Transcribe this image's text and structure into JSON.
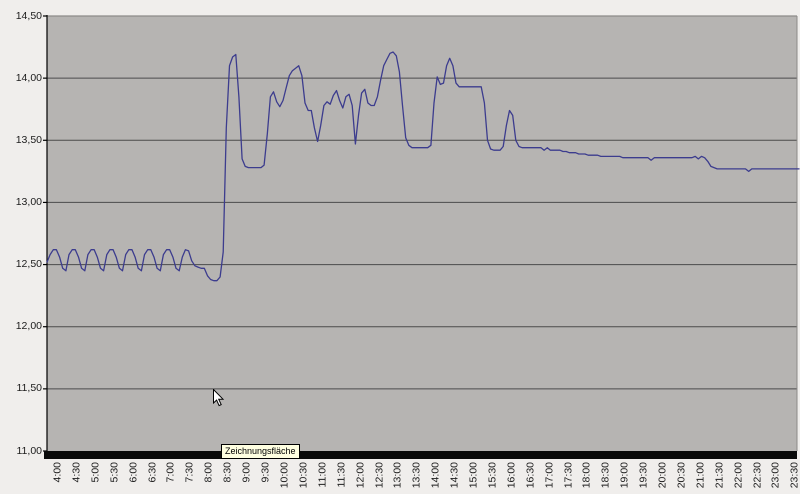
{
  "window": {
    "background": "#f0eeec",
    "plot_background": "#b6b4b2"
  },
  "tooltip": {
    "text": "Zeichnungsfläche"
  },
  "colors": {
    "series_line": "#3c3c8e",
    "gridline": "#4b4b4b",
    "axis": "#000000",
    "axis_band": "#0a0a0a",
    "plot_border": "#8c8a88",
    "tooltip_bg": "#ffffe1",
    "label_text": "#1c1c1c"
  },
  "chart_data": {
    "type": "line",
    "title": "",
    "xlabel": "",
    "ylabel": "",
    "ylim": [
      11.0,
      14.5
    ],
    "y_gridline_step": 0.5,
    "decimal_style": "comma",
    "legend": "none",
    "grid": "horizontal",
    "y_tick_labels": [
      "14,50",
      "14,00",
      "13,50",
      "13,00",
      "12,50",
      "12,00",
      "11,50",
      "11,00"
    ],
    "x_tick_labels": [
      "4:00",
      "4:30",
      "5:00",
      "5:30",
      "6:00",
      "6:30",
      "7:00",
      "7:30",
      "8:00",
      "8:30",
      "9:00",
      "9:30",
      "10:00",
      "10:30",
      "11:00",
      "11:30",
      "12:00",
      "12:30",
      "13:00",
      "13:30",
      "14:00",
      "14:30",
      "15:00",
      "15:30",
      "16:00",
      "16:30",
      "17:00",
      "17:30",
      "18:00",
      "18:30",
      "19:00",
      "19:30",
      "20:00",
      "20:30",
      "21:00",
      "21:30",
      "22:00",
      "22:30",
      "23:00",
      "23:30"
    ],
    "x_start": "04:00",
    "x_step_minutes": 5,
    "values": [
      12.52,
      12.58,
      12.62,
      12.62,
      12.56,
      12.47,
      12.45,
      12.58,
      12.62,
      12.62,
      12.56,
      12.47,
      12.45,
      12.58,
      12.62,
      12.62,
      12.56,
      12.47,
      12.45,
      12.58,
      12.62,
      12.62,
      12.56,
      12.47,
      12.45,
      12.58,
      12.62,
      12.62,
      12.56,
      12.47,
      12.45,
      12.58,
      12.62,
      12.62,
      12.56,
      12.47,
      12.45,
      12.58,
      12.62,
      12.62,
      12.56,
      12.47,
      12.45,
      12.56,
      12.62,
      12.61,
      12.53,
      12.49,
      12.48,
      12.47,
      12.47,
      12.41,
      12.38,
      12.37,
      12.37,
      12.4,
      12.6,
      13.6,
      14.1,
      14.17,
      14.19,
      13.85,
      13.35,
      13.29,
      13.28,
      13.28,
      13.28,
      13.28,
      13.28,
      13.3,
      13.55,
      13.85,
      13.89,
      13.81,
      13.77,
      13.82,
      13.92,
      14.02,
      14.06,
      14.08,
      14.1,
      14.02,
      13.8,
      13.74,
      13.74,
      13.6,
      13.49,
      13.62,
      13.78,
      13.81,
      13.79,
      13.86,
      13.9,
      13.82,
      13.76,
      13.85,
      13.87,
      13.78,
      13.47,
      13.7,
      13.88,
      13.91,
      13.8,
      13.78,
      13.78,
      13.85,
      13.98,
      14.1,
      14.15,
      14.2,
      14.21,
      14.18,
      14.05,
      13.78,
      13.52,
      13.46,
      13.44,
      13.44,
      13.44,
      13.44,
      13.44,
      13.44,
      13.46,
      13.8,
      14.01,
      13.95,
      13.96,
      14.1,
      14.16,
      14.1,
      13.96,
      13.93,
      13.93,
      13.93,
      13.93,
      13.93,
      13.93,
      13.93,
      13.93,
      13.8,
      13.5,
      13.43,
      13.42,
      13.42,
      13.42,
      13.45,
      13.62,
      13.74,
      13.7,
      13.5,
      13.45,
      13.44,
      13.44,
      13.44,
      13.44,
      13.44,
      13.44,
      13.44,
      13.42,
      13.44,
      13.42,
      13.42,
      13.42,
      13.42,
      13.41,
      13.41,
      13.4,
      13.4,
      13.4,
      13.39,
      13.39,
      13.39,
      13.38,
      13.38,
      13.38,
      13.38,
      13.37,
      13.37,
      13.37,
      13.37,
      13.37,
      13.37,
      13.37,
      13.36,
      13.36,
      13.36,
      13.36,
      13.36,
      13.36,
      13.36,
      13.36,
      13.36,
      13.34,
      13.36,
      13.36,
      13.36,
      13.36,
      13.36,
      13.36,
      13.36,
      13.36,
      13.36,
      13.36,
      13.36,
      13.36,
      13.36,
      13.37,
      13.35,
      13.37,
      13.36,
      13.33,
      13.29,
      13.28,
      13.27,
      13.27,
      13.27,
      13.27,
      13.27,
      13.27,
      13.27,
      13.27,
      13.27,
      13.27,
      13.25,
      13.27,
      13.27,
      13.27,
      13.27,
      13.27,
      13.27,
      13.27,
      13.27,
      13.27,
      13.27,
      13.27,
      13.27,
      13.27,
      13.27,
      13.27,
      13.27
    ]
  }
}
